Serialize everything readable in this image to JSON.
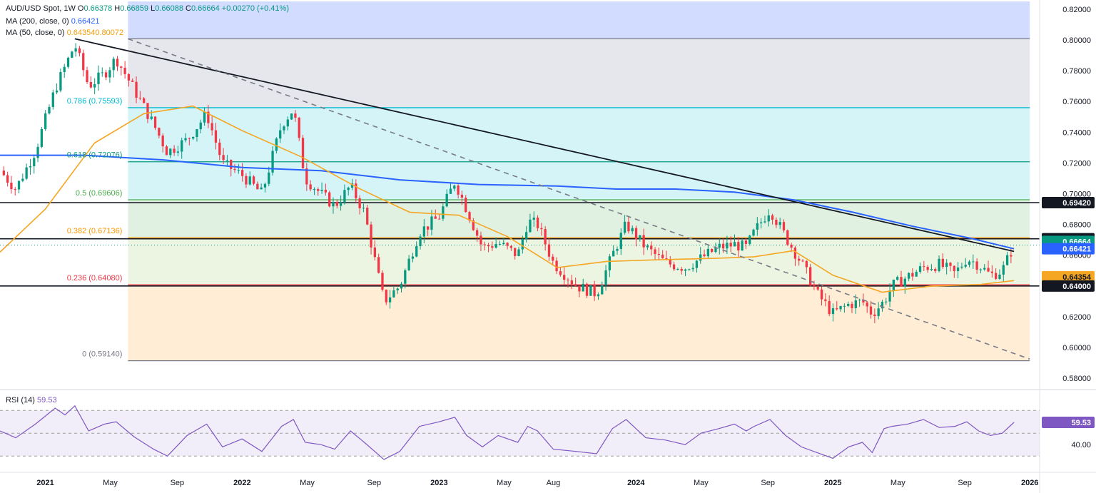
{
  "legend": {
    "symbol": "AUD/USD Spot",
    "interval": "1W",
    "open_label": "O",
    "open": "0.66378",
    "high_label": "H",
    "high": "0.66859",
    "low_label": "L",
    "low": "0.66088",
    "close_label": "C",
    "close": "0.66664",
    "change": "+0.00270 (+0.41%)",
    "ma200_label": "MA (200, close, 0)",
    "ma200_value": "0.66421",
    "ma50_label": "MA (50, close, 0)",
    "ma50_value": "0.64354",
    "overlap_value": "0.80072"
  },
  "rsi_legend": {
    "label": "RSI (14)",
    "value": "59.53"
  },
  "colors": {
    "up": "#089981",
    "down": "#f23645",
    "ma200": "#2962ff",
    "ma50": "#f5a623",
    "rsi": "#7e57c2",
    "trend": "#131722",
    "dashed": "#787b86"
  },
  "chart_data": [
    {
      "type": "candlestick",
      "title": "AUD/USD Spot",
      "interval": "1W",
      "ylim": [
        0.575,
        0.825
      ],
      "y_ticks": [
        "0.82000",
        "0.80000",
        "0.78000",
        "0.76000",
        "0.74000",
        "0.72000",
        "0.70000",
        "0.68000",
        "0.66000",
        "0.64000",
        "0.62000",
        "0.60000",
        "0.58000"
      ],
      "x_ticks": [
        {
          "label": "2021",
          "t": 2021.0
        },
        {
          "label": "May",
          "t": 2021.33
        },
        {
          "label": "Sep",
          "t": 2021.67
        },
        {
          "label": "2022",
          "t": 2022.0
        },
        {
          "label": "May",
          "t": 2022.33
        },
        {
          "label": "Sep",
          "t": 2022.67
        },
        {
          "label": "2023",
          "t": 2023.0
        },
        {
          "label": "May",
          "t": 2023.33
        },
        {
          "label": "Aug",
          "t": 2023.58
        },
        {
          "label": "2024",
          "t": 2024.0
        },
        {
          "label": "May",
          "t": 2024.33
        },
        {
          "label": "Sep",
          "t": 2024.67
        },
        {
          "label": "2025",
          "t": 2025.0
        },
        {
          "label": "May",
          "t": 2025.33
        },
        {
          "label": "Sep",
          "t": 2025.67
        },
        {
          "label": "2026",
          "t": 2026.0
        }
      ],
      "x_range": [
        2020.77,
        2026.05
      ],
      "fib_start": 2021.42,
      "fib_end": 2026.0,
      "fib_levels": [
        {
          "ratio": "1",
          "label": "",
          "value": 0.80072,
          "fill": "#d1d4dc",
          "line": "#787b86"
        },
        {
          "ratio": "0.786",
          "label": "0.786 (0.75593)",
          "value": 0.75593,
          "fill": "#b2ebf2",
          "line": "#00bcd4"
        },
        {
          "ratio": "0.618",
          "label": "0.618 (0.72076)",
          "value": 0.72076,
          "fill": "#b2ebf2",
          "line": "#089981"
        },
        {
          "ratio": "0.5",
          "label": "0.5 (0.69606)",
          "value": 0.69606,
          "fill": "#c8e6c9",
          "line": "#4caf50"
        },
        {
          "ratio": "0.382",
          "label": "0.382 (0.67136)",
          "value": 0.67136,
          "fill": "#dcedc8",
          "line": "#ff9800"
        },
        {
          "ratio": "0.236",
          "label": "0.236 (0.64080)",
          "value": 0.6408,
          "fill": "#ffe0b2",
          "line": "#f23645"
        },
        {
          "ratio": "0",
          "label": "0 (0.59140)",
          "value": 0.5914,
          "fill": "#ffcdd2",
          "line": "#787b86"
        }
      ],
      "top_band_fill": "#c5d3ff",
      "horizontal_lines": [
        0.6942,
        0.6707,
        0.64
      ],
      "price_badges": [
        {
          "label": "0.67070",
          "value": 0.6707,
          "bg": "#131722",
          "fg": "#ffffff"
        },
        {
          "label": "0.66664",
          "value": 0.669,
          "bg": "#089981",
          "fg": "#ffffff"
        },
        {
          "label": "0.69420",
          "value": 0.6942,
          "bg": "#131722",
          "fg": "#ffffff"
        },
        {
          "label": "0.66421",
          "value": 0.6642,
          "bg": "#2962ff",
          "fg": "#ffffff"
        },
        {
          "label": "0.64354",
          "value": 0.646,
          "bg": "#f5a623",
          "fg": "#131722"
        },
        {
          "label": "0.64000",
          "value": 0.64,
          "bg": "#131722",
          "fg": "#ffffff"
        }
      ],
      "trendline": [
        {
          "t": 2021.15,
          "y": 0.8007
        },
        {
          "t": 2025.92,
          "y": 0.6625
        }
      ],
      "dashed_trendline": [
        {
          "t": 2021.42,
          "y": 0.8007
        },
        {
          "t": 2026.0,
          "y": 0.5925
        }
      ],
      "ma200": [
        {
          "t": 2020.77,
          "y": 0.725
        },
        {
          "t": 2021.2,
          "y": 0.725
        },
        {
          "t": 2021.6,
          "y": 0.722
        },
        {
          "t": 2022.0,
          "y": 0.717
        },
        {
          "t": 2022.4,
          "y": 0.715
        },
        {
          "t": 2022.8,
          "y": 0.709
        },
        {
          "t": 2023.2,
          "y": 0.706
        },
        {
          "t": 2023.6,
          "y": 0.705
        },
        {
          "t": 2023.9,
          "y": 0.703
        },
        {
          "t": 2024.2,
          "y": 0.703
        },
        {
          "t": 2024.5,
          "y": 0.701
        },
        {
          "t": 2024.8,
          "y": 0.696
        },
        {
          "t": 2025.1,
          "y": 0.688
        },
        {
          "t": 2025.4,
          "y": 0.679
        },
        {
          "t": 2025.7,
          "y": 0.671
        },
        {
          "t": 2025.92,
          "y": 0.6642
        }
      ],
      "ma50": [
        {
          "t": 2020.77,
          "y": 0.662
        },
        {
          "t": 2021.0,
          "y": 0.69
        },
        {
          "t": 2021.25,
          "y": 0.733
        },
        {
          "t": 2021.5,
          "y": 0.752
        },
        {
          "t": 2021.75,
          "y": 0.757
        },
        {
          "t": 2022.0,
          "y": 0.741
        },
        {
          "t": 2022.3,
          "y": 0.724
        },
        {
          "t": 2022.6,
          "y": 0.703
        },
        {
          "t": 2022.85,
          "y": 0.688
        },
        {
          "t": 2023.1,
          "y": 0.686
        },
        {
          "t": 2023.35,
          "y": 0.672
        },
        {
          "t": 2023.6,
          "y": 0.652
        },
        {
          "t": 2023.85,
          "y": 0.656
        },
        {
          "t": 2024.1,
          "y": 0.657
        },
        {
          "t": 2024.4,
          "y": 0.658
        },
        {
          "t": 2024.6,
          "y": 0.659
        },
        {
          "t": 2024.8,
          "y": 0.663
        },
        {
          "t": 2025.0,
          "y": 0.647
        },
        {
          "t": 2025.25,
          "y": 0.636
        },
        {
          "t": 2025.5,
          "y": 0.64
        },
        {
          "t": 2025.75,
          "y": 0.641
        },
        {
          "t": 2025.92,
          "y": 0.6435
        }
      ],
      "candle_path": [
        {
          "t": 2020.77,
          "y": 0.715
        },
        {
          "t": 2020.85,
          "y": 0.703
        },
        {
          "t": 2020.95,
          "y": 0.728
        },
        {
          "t": 2021.05,
          "y": 0.768
        },
        {
          "t": 2021.15,
          "y": 0.797
        },
        {
          "t": 2021.22,
          "y": 0.77
        },
        {
          "t": 2021.3,
          "y": 0.778
        },
        {
          "t": 2021.36,
          "y": 0.788
        },
        {
          "t": 2021.45,
          "y": 0.768
        },
        {
          "t": 2021.55,
          "y": 0.745
        },
        {
          "t": 2021.62,
          "y": 0.727
        },
        {
          "t": 2021.72,
          "y": 0.735
        },
        {
          "t": 2021.82,
          "y": 0.752
        },
        {
          "t": 2021.9,
          "y": 0.72
        },
        {
          "t": 2022.0,
          "y": 0.712
        },
        {
          "t": 2022.1,
          "y": 0.7
        },
        {
          "t": 2022.2,
          "y": 0.745
        },
        {
          "t": 2022.26,
          "y": 0.755
        },
        {
          "t": 2022.32,
          "y": 0.71
        },
        {
          "t": 2022.4,
          "y": 0.7
        },
        {
          "t": 2022.47,
          "y": 0.692
        },
        {
          "t": 2022.55,
          "y": 0.705
        },
        {
          "t": 2022.62,
          "y": 0.688
        },
        {
          "t": 2022.72,
          "y": 0.63
        },
        {
          "t": 2022.8,
          "y": 0.64
        },
        {
          "t": 2022.9,
          "y": 0.675
        },
        {
          "t": 2023.0,
          "y": 0.685
        },
        {
          "t": 2023.08,
          "y": 0.708
        },
        {
          "t": 2023.14,
          "y": 0.69
        },
        {
          "t": 2023.22,
          "y": 0.665
        },
        {
          "t": 2023.3,
          "y": 0.668
        },
        {
          "t": 2023.4,
          "y": 0.66
        },
        {
          "t": 2023.45,
          "y": 0.682
        },
        {
          "t": 2023.5,
          "y": 0.68
        },
        {
          "t": 2023.58,
          "y": 0.655
        },
        {
          "t": 2023.7,
          "y": 0.64
        },
        {
          "t": 2023.8,
          "y": 0.635
        },
        {
          "t": 2023.88,
          "y": 0.66
        },
        {
          "t": 2023.95,
          "y": 0.68
        },
        {
          "t": 2024.05,
          "y": 0.665
        },
        {
          "t": 2024.15,
          "y": 0.655
        },
        {
          "t": 2024.25,
          "y": 0.652
        },
        {
          "t": 2024.33,
          "y": 0.658
        },
        {
          "t": 2024.42,
          "y": 0.665
        },
        {
          "t": 2024.5,
          "y": 0.667
        },
        {
          "t": 2024.56,
          "y": 0.665
        },
        {
          "t": 2024.6,
          "y": 0.675
        },
        {
          "t": 2024.68,
          "y": 0.69
        },
        {
          "t": 2024.76,
          "y": 0.672
        },
        {
          "t": 2024.84,
          "y": 0.655
        },
        {
          "t": 2024.92,
          "y": 0.635
        },
        {
          "t": 2025.0,
          "y": 0.622
        },
        {
          "t": 2025.08,
          "y": 0.628
        },
        {
          "t": 2025.15,
          "y": 0.63
        },
        {
          "t": 2025.2,
          "y": 0.622
        },
        {
          "t": 2025.26,
          "y": 0.63
        },
        {
          "t": 2025.3,
          "y": 0.64
        },
        {
          "t": 2025.38,
          "y": 0.646
        },
        {
          "t": 2025.46,
          "y": 0.652
        },
        {
          "t": 2025.54,
          "y": 0.654
        },
        {
          "t": 2025.62,
          "y": 0.648
        },
        {
          "t": 2025.68,
          "y": 0.658
        },
        {
          "t": 2025.74,
          "y": 0.654
        },
        {
          "t": 2025.8,
          "y": 0.647
        },
        {
          "t": 2025.86,
          "y": 0.65
        },
        {
          "t": 2025.92,
          "y": 0.6666
        }
      ]
    },
    {
      "type": "line",
      "title": "RSI (14)",
      "ylim": [
        22,
        82
      ],
      "y_ticks": [
        "40.00"
      ],
      "guides": [
        70,
        50,
        30
      ],
      "last_value": "59.53",
      "rsi_path": [
        {
          "t": 2020.77,
          "y": 52
        },
        {
          "t": 2020.85,
          "y": 46
        },
        {
          "t": 2020.95,
          "y": 58
        },
        {
          "t": 2021.05,
          "y": 72
        },
        {
          "t": 2021.1,
          "y": 66
        },
        {
          "t": 2021.15,
          "y": 74
        },
        {
          "t": 2021.22,
          "y": 52
        },
        {
          "t": 2021.3,
          "y": 58
        },
        {
          "t": 2021.36,
          "y": 60
        },
        {
          "t": 2021.45,
          "y": 47
        },
        {
          "t": 2021.55,
          "y": 36
        },
        {
          "t": 2021.62,
          "y": 30
        },
        {
          "t": 2021.72,
          "y": 48
        },
        {
          "t": 2021.82,
          "y": 58
        },
        {
          "t": 2021.9,
          "y": 38
        },
        {
          "t": 2022.0,
          "y": 45
        },
        {
          "t": 2022.1,
          "y": 34
        },
        {
          "t": 2022.2,
          "y": 56
        },
        {
          "t": 2022.26,
          "y": 62
        },
        {
          "t": 2022.32,
          "y": 42
        },
        {
          "t": 2022.4,
          "y": 40
        },
        {
          "t": 2022.47,
          "y": 36
        },
        {
          "t": 2022.55,
          "y": 52
        },
        {
          "t": 2022.62,
          "y": 42
        },
        {
          "t": 2022.72,
          "y": 27
        },
        {
          "t": 2022.8,
          "y": 34
        },
        {
          "t": 2022.9,
          "y": 56
        },
        {
          "t": 2023.0,
          "y": 60
        },
        {
          "t": 2023.08,
          "y": 64
        },
        {
          "t": 2023.14,
          "y": 48
        },
        {
          "t": 2023.22,
          "y": 38
        },
        {
          "t": 2023.3,
          "y": 48
        },
        {
          "t": 2023.4,
          "y": 42
        },
        {
          "t": 2023.45,
          "y": 56
        },
        {
          "t": 2023.5,
          "y": 52
        },
        {
          "t": 2023.58,
          "y": 36
        },
        {
          "t": 2023.7,
          "y": 34
        },
        {
          "t": 2023.8,
          "y": 32
        },
        {
          "t": 2023.88,
          "y": 54
        },
        {
          "t": 2023.95,
          "y": 62
        },
        {
          "t": 2024.05,
          "y": 46
        },
        {
          "t": 2024.15,
          "y": 44
        },
        {
          "t": 2024.25,
          "y": 40
        },
        {
          "t": 2024.33,
          "y": 50
        },
        {
          "t": 2024.42,
          "y": 54
        },
        {
          "t": 2024.5,
          "y": 58
        },
        {
          "t": 2024.56,
          "y": 52
        },
        {
          "t": 2024.6,
          "y": 56
        },
        {
          "t": 2024.68,
          "y": 62
        },
        {
          "t": 2024.76,
          "y": 48
        },
        {
          "t": 2024.84,
          "y": 38
        },
        {
          "t": 2024.92,
          "y": 33
        },
        {
          "t": 2025.0,
          "y": 28
        },
        {
          "t": 2025.08,
          "y": 38
        },
        {
          "t": 2025.15,
          "y": 42
        },
        {
          "t": 2025.2,
          "y": 33
        },
        {
          "t": 2025.26,
          "y": 54
        },
        {
          "t": 2025.3,
          "y": 56
        },
        {
          "t": 2025.38,
          "y": 58
        },
        {
          "t": 2025.46,
          "y": 62
        },
        {
          "t": 2025.54,
          "y": 55
        },
        {
          "t": 2025.62,
          "y": 56
        },
        {
          "t": 2025.68,
          "y": 60
        },
        {
          "t": 2025.74,
          "y": 52
        },
        {
          "t": 2025.8,
          "y": 48
        },
        {
          "t": 2025.86,
          "y": 50
        },
        {
          "t": 2025.92,
          "y": 59.53
        }
      ]
    }
  ]
}
